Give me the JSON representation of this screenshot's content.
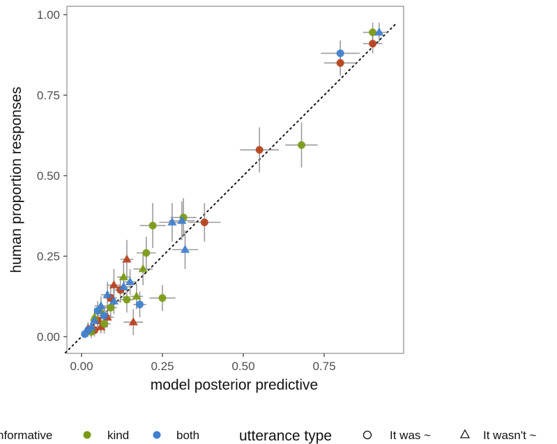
{
  "chart_data": {
    "type": "scatter",
    "xlabel": "model posterior predictive",
    "ylabel": "human proportion responses",
    "xlim": [
      -0.05,
      0.98
    ],
    "ylim": [
      -0.03,
      1.02
    ],
    "x_ticks": [
      "0.00",
      "0.25",
      "0.50",
      "0.75"
    ],
    "y_ticks": [
      "0.00",
      "0.25",
      "0.50",
      "0.75",
      "1.00"
    ],
    "grid": false,
    "reference_line": {
      "style": "dotted",
      "slope": 1,
      "intercept": 0
    },
    "legend_position": "bottom",
    "colors": {
      "informative": "#b5401a",
      "kind": "#7a9a12",
      "both": "#3f7fcf"
    },
    "series": [
      {
        "name": "informative",
        "color": "#b5401a",
        "points": [
          {
            "x": 0.9,
            "y": 0.91,
            "shape": "circle",
            "xerr": 0.03,
            "yerr": 0.03
          },
          {
            "x": 0.8,
            "y": 0.85,
            "shape": "circle",
            "xerr": 0.05,
            "yerr": 0.04
          },
          {
            "x": 0.55,
            "y": 0.58,
            "shape": "circle",
            "xerr": 0.06,
            "yerr": 0.07
          },
          {
            "x": 0.38,
            "y": 0.355,
            "shape": "circle",
            "xerr": 0.05,
            "yerr": 0.06
          },
          {
            "x": 0.14,
            "y": 0.24,
            "shape": "triangle",
            "xerr": 0.02,
            "yerr": 0.06
          },
          {
            "x": 0.16,
            "y": 0.045,
            "shape": "triangle",
            "xerr": 0.03,
            "yerr": 0.04
          },
          {
            "x": 0.1,
            "y": 0.16,
            "shape": "triangle",
            "xerr": 0.02,
            "yerr": 0.05
          },
          {
            "x": 0.12,
            "y": 0.145,
            "shape": "circle",
            "xerr": 0.02,
            "yerr": 0.04
          },
          {
            "x": 0.08,
            "y": 0.06,
            "shape": "triangle",
            "xerr": 0.02,
            "yerr": 0.03
          },
          {
            "x": 0.06,
            "y": 0.03,
            "shape": "triangle",
            "xerr": 0.02,
            "yerr": 0.02
          },
          {
            "x": 0.04,
            "y": 0.02,
            "shape": "circle",
            "xerr": 0.01,
            "yerr": 0.02
          },
          {
            "x": 0.02,
            "y": 0.025,
            "shape": "triangle",
            "xerr": 0.01,
            "yerr": 0.02
          },
          {
            "x": 0.09,
            "y": 0.12,
            "shape": "circle",
            "xerr": 0.02,
            "yerr": 0.04
          },
          {
            "x": 0.05,
            "y": 0.05,
            "shape": "circle",
            "xerr": 0.01,
            "yerr": 0.02
          }
        ]
      },
      {
        "name": "kind",
        "color": "#7a9a12",
        "points": [
          {
            "x": 0.9,
            "y": 0.945,
            "shape": "circle",
            "xerr": 0.03,
            "yerr": 0.03
          },
          {
            "x": 0.68,
            "y": 0.595,
            "shape": "circle",
            "xerr": 0.05,
            "yerr": 0.07
          },
          {
            "x": 0.315,
            "y": 0.37,
            "shape": "circle",
            "xerr": 0.04,
            "yerr": 0.06
          },
          {
            "x": 0.22,
            "y": 0.345,
            "shape": "circle",
            "xerr": 0.04,
            "yerr": 0.07
          },
          {
            "x": 0.25,
            "y": 0.12,
            "shape": "circle",
            "xerr": 0.04,
            "yerr": 0.04
          },
          {
            "x": 0.2,
            "y": 0.26,
            "shape": "circle",
            "xerr": 0.03,
            "yerr": 0.05
          },
          {
            "x": 0.19,
            "y": 0.21,
            "shape": "triangle",
            "xerr": 0.03,
            "yerr": 0.05
          },
          {
            "x": 0.13,
            "y": 0.185,
            "shape": "triangle",
            "xerr": 0.02,
            "yerr": 0.05
          },
          {
            "x": 0.17,
            "y": 0.125,
            "shape": "triangle",
            "xerr": 0.02,
            "yerr": 0.04
          },
          {
            "x": 0.14,
            "y": 0.115,
            "shape": "circle",
            "xerr": 0.02,
            "yerr": 0.04
          },
          {
            "x": 0.06,
            "y": 0.08,
            "shape": "triangle",
            "xerr": 0.02,
            "yerr": 0.03
          },
          {
            "x": 0.07,
            "y": 0.04,
            "shape": "circle",
            "xerr": 0.02,
            "yerr": 0.03
          },
          {
            "x": 0.04,
            "y": 0.06,
            "shape": "triangle",
            "xerr": 0.01,
            "yerr": 0.03
          },
          {
            "x": 0.03,
            "y": 0.015,
            "shape": "circle",
            "xerr": 0.01,
            "yerr": 0.02
          },
          {
            "x": 0.09,
            "y": 0.09,
            "shape": "circle",
            "xerr": 0.02,
            "yerr": 0.03
          }
        ]
      },
      {
        "name": "both",
        "color": "#3f7fcf",
        "points": [
          {
            "x": 0.92,
            "y": 0.945,
            "shape": "triangle",
            "xerr": 0.03,
            "yerr": 0.03
          },
          {
            "x": 0.8,
            "y": 0.88,
            "shape": "circle",
            "xerr": 0.06,
            "yerr": 0.04
          },
          {
            "x": 0.28,
            "y": 0.355,
            "shape": "triangle",
            "xerr": 0.04,
            "yerr": 0.06
          },
          {
            "x": 0.31,
            "y": 0.36,
            "shape": "triangle",
            "xerr": 0.04,
            "yerr": 0.06
          },
          {
            "x": 0.32,
            "y": 0.27,
            "shape": "triangle",
            "xerr": 0.04,
            "yerr": 0.06
          },
          {
            "x": 0.18,
            "y": 0.1,
            "shape": "circle",
            "xerr": 0.02,
            "yerr": 0.04
          },
          {
            "x": 0.15,
            "y": 0.17,
            "shape": "triangle",
            "xerr": 0.02,
            "yerr": 0.04
          },
          {
            "x": 0.13,
            "y": 0.155,
            "shape": "triangle",
            "xerr": 0.02,
            "yerr": 0.04
          },
          {
            "x": 0.08,
            "y": 0.13,
            "shape": "triangle",
            "xerr": 0.02,
            "yerr": 0.04
          },
          {
            "x": 0.06,
            "y": 0.095,
            "shape": "triangle",
            "xerr": 0.02,
            "yerr": 0.03
          },
          {
            "x": 0.05,
            "y": 0.08,
            "shape": "circle",
            "xerr": 0.01,
            "yerr": 0.03
          },
          {
            "x": 0.04,
            "y": 0.05,
            "shape": "triangle",
            "xerr": 0.01,
            "yerr": 0.02
          },
          {
            "x": 0.02,
            "y": 0.02,
            "shape": "circle",
            "xerr": 0.01,
            "yerr": 0.02
          },
          {
            "x": 0.01,
            "y": 0.008,
            "shape": "circle",
            "xerr": 0.005,
            "yerr": 0.01
          },
          {
            "x": 0.03,
            "y": 0.03,
            "shape": "triangle",
            "xerr": 0.01,
            "yerr": 0.02
          },
          {
            "x": 0.07,
            "y": 0.065,
            "shape": "circle",
            "xerr": 0.02,
            "yerr": 0.03
          },
          {
            "x": 0.1,
            "y": 0.11,
            "shape": "triangle",
            "xerr": 0.02,
            "yerr": 0.04
          }
        ]
      }
    ]
  },
  "legend": {
    "color_items": [
      {
        "label": "nformative",
        "color": "#b5401a"
      },
      {
        "label": "kind",
        "color": "#7a9a12"
      },
      {
        "label": "both",
        "color": "#3f7fcf"
      }
    ],
    "shape_title": "utterance type",
    "shape_items": [
      {
        "label": "It was ~",
        "shape": "circle-open"
      },
      {
        "label": "It wasn't ~",
        "shape": "triangle-open"
      }
    ]
  }
}
